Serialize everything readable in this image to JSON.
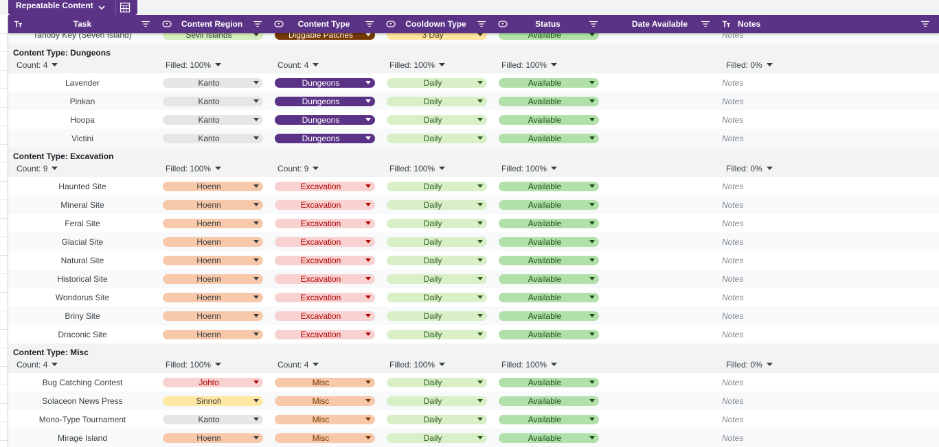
{
  "tab": {
    "title": "Repeatable Content"
  },
  "columns": [
    "Task",
    "Content Region",
    "Content Type",
    "Cooldown Type",
    "Status",
    "Date Available",
    "Notes"
  ],
  "partial_row": [
    "Tanoby Key (Seven Island)",
    "Sevii Islands",
    "Diggable Patches",
    "3 Day",
    "Available",
    "Notes"
  ],
  "groups": [
    {
      "title": "Content Type: Dungeons",
      "summary": [
        "Count: 4",
        "Filled: 100%",
        "Count: 4",
        "Filled: 100%",
        "Filled: 100%",
        "Filled: 0%"
      ],
      "rows": [
        [
          "Lavender",
          "Kanto",
          "Dungeons",
          "Daily",
          "Available",
          "Notes"
        ],
        [
          "Pinkan",
          "Kanto",
          "Dungeons",
          "Daily",
          "Available",
          "Notes"
        ],
        [
          "Hoopa",
          "Kanto",
          "Dungeons",
          "Daily",
          "Available",
          "Notes"
        ],
        [
          "Victini",
          "Kanto",
          "Dungeons",
          "Daily",
          "Available",
          "Notes"
        ]
      ]
    },
    {
      "title": "Content Type: Excavation",
      "summary": [
        "Count: 9",
        "Filled: 100%",
        "Count: 9",
        "Filled: 100%",
        "Filled: 100%",
        "Filled: 0%"
      ],
      "rows": [
        [
          "Haunted Site",
          "Hoenn",
          "Excavation",
          "Daily",
          "Available",
          "Notes"
        ],
        [
          "Mineral Site",
          "Hoenn",
          "Excavation",
          "Daily",
          "Available",
          "Notes"
        ],
        [
          "Feral Site",
          "Hoenn",
          "Excavation",
          "Daily",
          "Available",
          "Notes"
        ],
        [
          "Glacial Site",
          "Hoenn",
          "Excavation",
          "Daily",
          "Available",
          "Notes"
        ],
        [
          "Natural Site",
          "Hoenn",
          "Excavation",
          "Daily",
          "Available",
          "Notes"
        ],
        [
          "Historical Site",
          "Hoenn",
          "Excavation",
          "Daily",
          "Available",
          "Notes"
        ],
        [
          "Wondorus Site",
          "Hoenn",
          "Excavation",
          "Daily",
          "Available",
          "Notes"
        ],
        [
          "Briny Site",
          "Hoenn",
          "Excavation",
          "Daily",
          "Available",
          "Notes"
        ],
        [
          "Draconic Site",
          "Hoenn",
          "Excavation",
          "Daily",
          "Available",
          "Notes"
        ]
      ]
    },
    {
      "title": "Content Type: Misc",
      "summary": [
        "Count: 4",
        "Filled: 100%",
        "Count: 4",
        "Filled: 100%",
        "Filled: 100%",
        "Filled: 0%"
      ],
      "rows": [
        [
          "Bug Catching Contest",
          "Johto",
          "Misc",
          "Daily",
          "Available",
          "Notes"
        ],
        [
          "Solaceon News Press",
          "Sinnoh",
          "Misc",
          "Daily",
          "Available",
          "Notes"
        ],
        [
          "Mono-Type Tournament",
          "Kanto",
          "Misc",
          "Daily",
          "Available",
          "Notes"
        ],
        [
          "Mirage Island",
          "Hoenn",
          "Misc",
          "Daily",
          "Available",
          "Notes"
        ]
      ]
    }
  ],
  "chip_styles": {
    "Kanto": [
      "#e6e6e6",
      "#3c3c3c"
    ],
    "Hoenn": [
      "#f7c9aa",
      "#3c3c3c"
    ],
    "Johto": [
      "#f8d1d1",
      "#b10202"
    ],
    "Sinnoh": [
      "#ffe8a3",
      "#3c3c3c"
    ],
    "Sevii Islands": [
      "#d4edbc",
      "#3c3c3c"
    ],
    "Dungeons": [
      "#5a3286",
      "#ffffff"
    ],
    "Excavation": [
      "#f8d1d1",
      "#b10202"
    ],
    "Misc": [
      "#f7c9aa",
      "#753800"
    ],
    "Diggable Patches": [
      "#753800",
      "#ffffff"
    ],
    "Daily": [
      "#d9efc8",
      "#2f5e1e"
    ],
    "3 Day": [
      "#ffe5a0",
      "#473821"
    ],
    "Available": [
      "#b2e0aa",
      "#1b4d16"
    ]
  }
}
